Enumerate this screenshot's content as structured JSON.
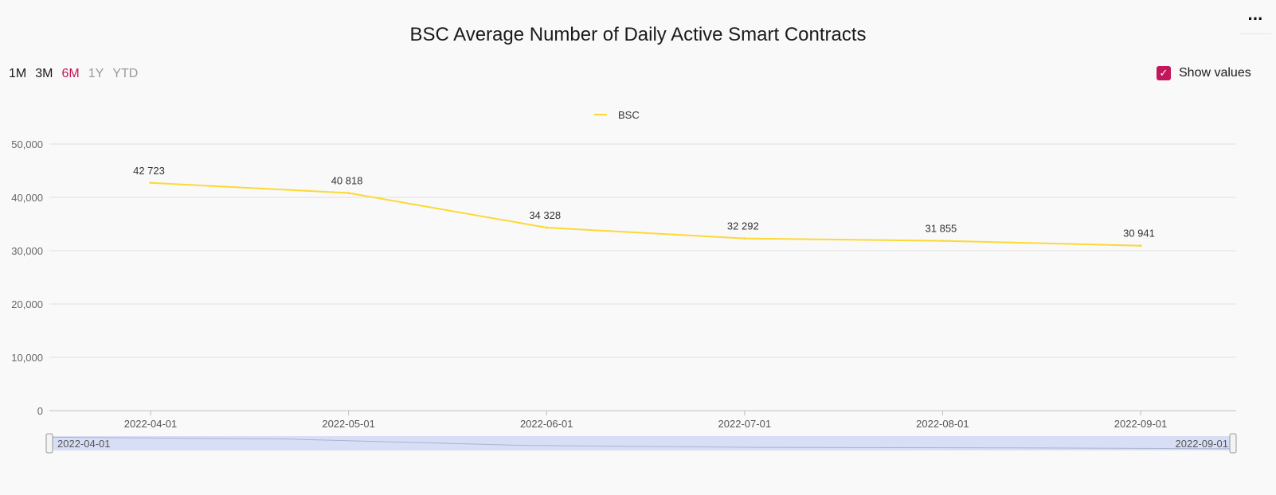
{
  "menu": {
    "label": "···"
  },
  "title": "BSC Average Number of Daily Active Smart Contracts",
  "ranges": [
    {
      "label": "1M",
      "state": "dark"
    },
    {
      "label": "3M",
      "state": "dark"
    },
    {
      "label": "6M",
      "state": "active"
    },
    {
      "label": "1Y",
      "state": "muted"
    },
    {
      "label": "YTD",
      "state": "muted"
    }
  ],
  "show_values": {
    "label": "Show values",
    "checked": true
  },
  "colors": {
    "accent": "#c2185b",
    "line": "#fdd835",
    "navigator": "#d8def5"
  },
  "chart_data": {
    "type": "line",
    "x": [
      "2022-04-01",
      "2022-05-01",
      "2022-06-01",
      "2022-07-01",
      "2022-08-01",
      "2022-09-01"
    ],
    "series": [
      {
        "name": "BSC",
        "values": [
          42723,
          40818,
          34328,
          32292,
          31855,
          30941
        ],
        "labels": [
          "42 723",
          "40 818",
          "34 328",
          "32 292",
          "31 855",
          "30 941"
        ]
      }
    ],
    "yticks": [
      "0",
      "10,000",
      "20,000",
      "30,000",
      "40,000",
      "50,000"
    ],
    "ylim": [
      0,
      50000
    ],
    "grid": true,
    "legend": "top-center",
    "navigator": {
      "start": "2022-04-01",
      "end": "2022-09-01"
    }
  }
}
